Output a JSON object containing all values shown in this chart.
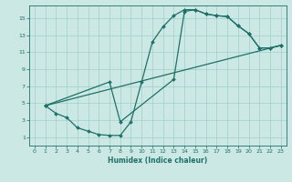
{
  "xlabel": "Humidex (Indice chaleur)",
  "background_color": "#cce8e4",
  "grid_color": "#9ecfca",
  "line_color": "#1e7068",
  "xlim": [
    -0.5,
    23.5
  ],
  "ylim": [
    0,
    16.5
  ],
  "xticks": [
    0,
    1,
    2,
    3,
    4,
    5,
    6,
    7,
    8,
    9,
    10,
    11,
    12,
    13,
    14,
    15,
    16,
    17,
    18,
    19,
    20,
    21,
    22,
    23
  ],
  "yticks": [
    1,
    3,
    5,
    7,
    9,
    11,
    13,
    15
  ],
  "line1_x": [
    1,
    2,
    3,
    4,
    5,
    6,
    7,
    8,
    9,
    10,
    11,
    12,
    13,
    14,
    15,
    16,
    17,
    18,
    19,
    20,
    21,
    22,
    23
  ],
  "line1_y": [
    4.7,
    3.8,
    3.3,
    2.1,
    1.7,
    1.3,
    1.2,
    1.2,
    2.8,
    7.5,
    12.2,
    14.0,
    15.3,
    16.0,
    16.0,
    15.5,
    15.3,
    15.2,
    14.1,
    13.2,
    11.5,
    11.5,
    11.8
  ],
  "line2_x": [
    1,
    7,
    8,
    13,
    14,
    15,
    16,
    17,
    18,
    19,
    20,
    21,
    22,
    23
  ],
  "line2_y": [
    4.7,
    7.5,
    2.8,
    7.8,
    15.8,
    16.0,
    15.5,
    15.3,
    15.2,
    14.1,
    13.2,
    11.5,
    11.5,
    11.8
  ],
  "line3_x": [
    1,
    23
  ],
  "line3_y": [
    4.7,
    11.8
  ]
}
